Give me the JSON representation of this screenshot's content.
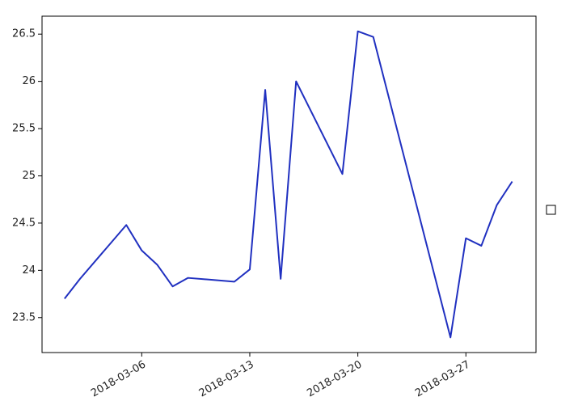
{
  "chart_data": {
    "type": "line",
    "x": [
      "2018-03-01",
      "2018-03-02",
      "2018-03-05",
      "2018-03-06",
      "2018-03-07",
      "2018-03-08",
      "2018-03-09",
      "2018-03-12",
      "2018-03-13",
      "2018-03-14",
      "2018-03-15",
      "2018-03-16",
      "2018-03-19",
      "2018-03-20",
      "2018-03-21",
      "2018-03-26",
      "2018-03-27",
      "2018-03-28",
      "2018-03-29",
      "2018-03-30"
    ],
    "series": [
      {
        "color": "#2030c0",
        "values": [
          23.7,
          23.91,
          24.48,
          24.21,
          24.06,
          23.83,
          23.92,
          23.88,
          24.01,
          25.91,
          23.91,
          26.0,
          25.02,
          26.53,
          26.47,
          23.29,
          24.34,
          24.26,
          24.69,
          24.94
        ]
      }
    ],
    "xlim": [
      "2018-02-27T13:00",
      "2018-03-31T13:00"
    ],
    "xticks": [
      "2018-03-06",
      "2018-03-13",
      "2018-03-20",
      "2018-03-27"
    ],
    "ylim": [
      23.13,
      26.69
    ],
    "yticks": [
      23.5,
      24.0,
      24.5,
      25.0,
      25.5,
      26.0,
      26.5
    ],
    "grid": false
  }
}
